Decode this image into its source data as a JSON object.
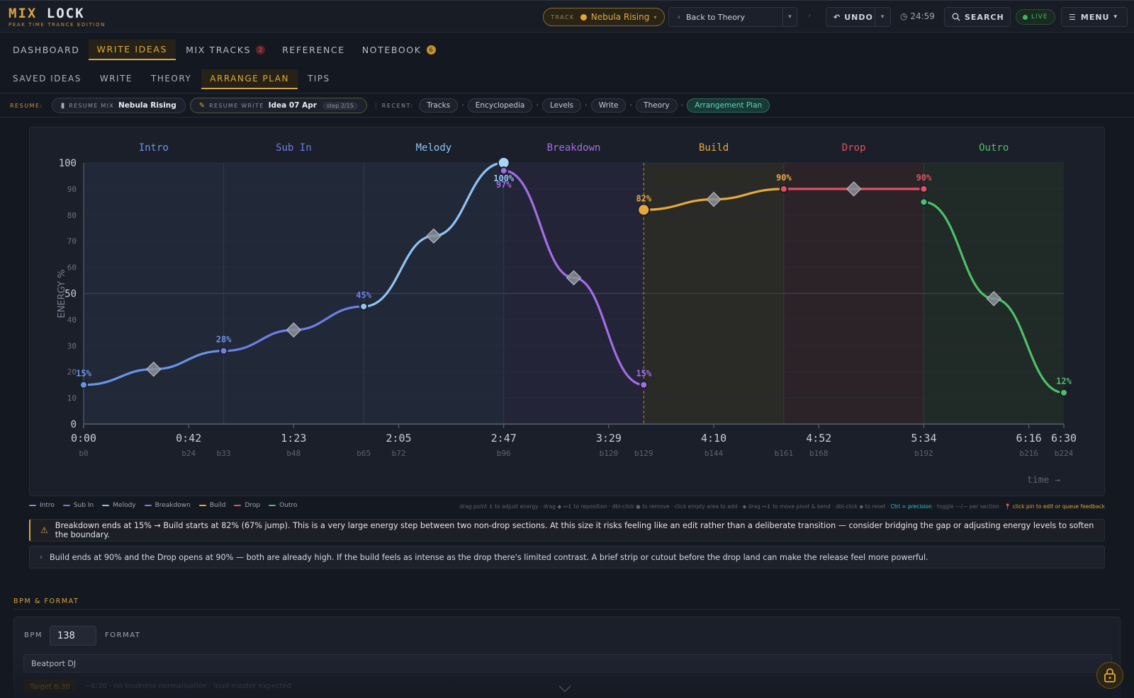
{
  "header": {
    "logo_main_a": "MIX ",
    "logo_main_b": "LOCK",
    "logo_sub": "PEAK TIME TRANCE EDITION",
    "track_label": "TRACK",
    "track_name": "Nebula Rising",
    "back_label": "Back to Theory",
    "undo_label": "UNDO",
    "timer": "24:59",
    "search_label": "SEARCH",
    "live_label": "LIVE",
    "menu_label": "MENU"
  },
  "nav": {
    "main": [
      {
        "label": "DASHBOARD"
      },
      {
        "label": "WRITE IDEAS",
        "active": true
      },
      {
        "label": "MIX TRACKS",
        "badge": "2"
      },
      {
        "label": "REFERENCE"
      },
      {
        "label": "NOTEBOOK",
        "badge": "6"
      }
    ],
    "sub": [
      {
        "label": "SAVED IDEAS"
      },
      {
        "label": "WRITE"
      },
      {
        "label": "THEORY"
      },
      {
        "label": "ARRANGE PLAN",
        "active": true
      },
      {
        "label": "TIPS"
      }
    ]
  },
  "resume": {
    "label": "RESUME:",
    "mix_small": "RESUME MIX",
    "mix_name": "Nebula Rising",
    "write_small": "RESUME WRITE",
    "write_name": "Idea 07 Apr",
    "write_step": "step 2/15",
    "recent_label": "RECENT:",
    "recent": [
      "Tracks",
      "Encyclopedia",
      "Levels",
      "Write",
      "Theory",
      "Arrangement Plan"
    ]
  },
  "chart_data": {
    "type": "line",
    "ylabel": "ENERGY %",
    "xlabel": "time →",
    "ylim": [
      0,
      100
    ],
    "xlim": [
      0,
      224
    ],
    "y_ticks": [
      0,
      10,
      20,
      30,
      40,
      50,
      60,
      70,
      80,
      90,
      100
    ],
    "x_ticks": [
      {
        "bar": 0,
        "time": "0:00"
      },
      {
        "bar": 24,
        "time": "0:42"
      },
      {
        "bar": 48,
        "time": "1:23"
      },
      {
        "bar": 72,
        "time": "2:05"
      },
      {
        "bar": 96,
        "time": "2:47"
      },
      {
        "bar": 120,
        "time": "3:29"
      },
      {
        "bar": 144,
        "time": "4:10"
      },
      {
        "bar": 168,
        "time": "4:52"
      },
      {
        "bar": 192,
        "time": "5:34"
      },
      {
        "bar": 216,
        "time": "6:16"
      },
      {
        "bar": 224,
        "time": "6:30"
      }
    ],
    "bar_labels": [
      {
        "bar": 0,
        "text": "b0"
      },
      {
        "bar": 24,
        "text": "b24"
      },
      {
        "bar": 32,
        "text": "b33"
      },
      {
        "bar": 48,
        "text": "b48"
      },
      {
        "bar": 64,
        "text": "b65"
      },
      {
        "bar": 72,
        "text": "b72"
      },
      {
        "bar": 96,
        "text": "b96"
      },
      {
        "bar": 120,
        "text": "b120"
      },
      {
        "bar": 128,
        "text": "b129"
      },
      {
        "bar": 144,
        "text": "b144"
      },
      {
        "bar": 160,
        "text": "b161"
      },
      {
        "bar": 168,
        "text": "b168"
      },
      {
        "bar": 192,
        "text": "b192"
      },
      {
        "bar": 216,
        "text": "b216"
      },
      {
        "bar": 224,
        "text": "b224"
      }
    ],
    "sections": [
      {
        "name": "Intro",
        "color": "#6a93e8",
        "start": 0,
        "end": 32,
        "points": [
          [
            0,
            15
          ],
          [
            16,
            21
          ],
          [
            32,
            28
          ]
        ],
        "labels": [
          [
            0,
            "15%"
          ],
          [
            32,
            "28%"
          ]
        ]
      },
      {
        "name": "Sub In",
        "color": "#6d7fe6",
        "start": 32,
        "end": 64,
        "points": [
          [
            32,
            28
          ],
          [
            48,
            36
          ],
          [
            64,
            45
          ]
        ],
        "labels": [
          [
            64,
            "45%"
          ]
        ]
      },
      {
        "name": "Melody",
        "color": "#8fc4f5",
        "start": 64,
        "end": 96,
        "points": [
          [
            64,
            45
          ],
          [
            80,
            72
          ],
          [
            96,
            100
          ]
        ],
        "labels": [
          [
            96,
            "100%"
          ]
        ]
      },
      {
        "name": "Breakdown",
        "color": "#a26ee6",
        "start": 96,
        "end": 128,
        "points": [
          [
            96,
            97
          ],
          [
            112,
            56
          ],
          [
            128,
            15
          ]
        ],
        "labels": [
          [
            96,
            "97%"
          ],
          [
            128,
            "15%"
          ]
        ]
      },
      {
        "name": "Build",
        "color": "#e8a93c",
        "start": 128,
        "end": 160,
        "points": [
          [
            128,
            82
          ],
          [
            144,
            86
          ],
          [
            160,
            90
          ]
        ],
        "labels": [
          [
            128,
            "82%"
          ],
          [
            160,
            "90%"
          ]
        ]
      },
      {
        "name": "Drop",
        "color": "#e0525e",
        "start": 160,
        "end": 192,
        "points": [
          [
            160,
            90
          ],
          [
            176,
            90
          ],
          [
            192,
            90
          ]
        ],
        "labels": [
          [
            192,
            "90%"
          ]
        ]
      },
      {
        "name": "Outro",
        "color": "#4fbf6a",
        "start": 192,
        "end": 224,
        "points": [
          [
            192,
            85
          ],
          [
            208,
            48
          ],
          [
            224,
            12
          ]
        ],
        "labels": [
          [
            224,
            "12%"
          ]
        ]
      }
    ],
    "grid": true
  },
  "legend": [
    "Intro",
    "Sub In",
    "Melody",
    "Breakdown",
    "Build",
    "Drop",
    "Outro"
  ],
  "hint": {
    "main": "drag point ↕ to adjust energy · drag ◆ ↔↕ to reposition · dbl-click ● to remove · click empty area to add · ◆ drag ↔↕ to move pivot & bend · dbl-click ◆ to reset ·",
    "precision": "Ctrl = precision",
    "toggle": "· toggle —/— per section ·",
    "pin": "📍 click pin to edit or queue feedback"
  },
  "notices": {
    "warning": "Breakdown ends at 15% → Build starts at 82% (67% jump). This is a very large energy step between two non-drop sections. At this size it risks feeling like an edit rather than a deliberate transition — consider bridging the gap or adjusting energy levels to soften the boundary.",
    "info": "Build ends at 90% and the Drop opens at 90% — both are already high. If the build feels as intense as the drop there's limited contrast. A brief strip or cutout before the drop land can make the release feel more powerful."
  },
  "bpm_format": {
    "section_title": "BPM & FORMAT",
    "bpm_label": "BPM",
    "bpm_value": "138",
    "format_label": "FORMAT",
    "format_value": "Beatport DJ",
    "target_label": "Target 6:30",
    "target_note": "~6:30 · no loudness normalisation · loud master expected"
  }
}
